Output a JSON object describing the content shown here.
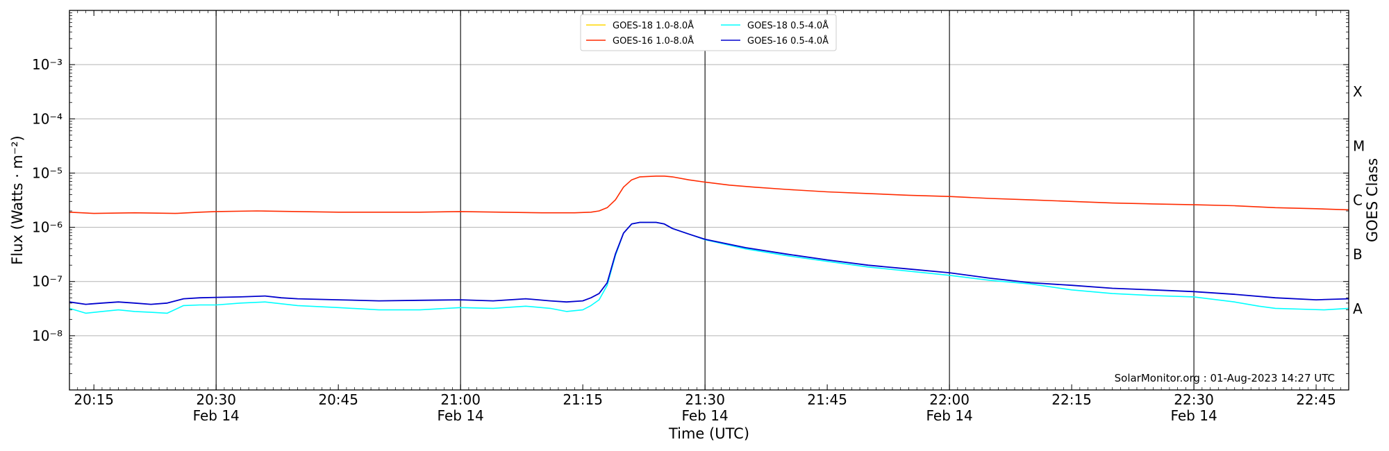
{
  "chart_data": {
    "type": "line",
    "title": "",
    "xlabel": "Time (UTC)",
    "ylabel": "Flux (Watts · m⁻²)",
    "y2label": "GOES Class",
    "y_scale": "log",
    "ylim": [
      1e-09,
      0.01
    ],
    "x_ticks": [
      {
        "time": "20:15",
        "date": ""
      },
      {
        "time": "20:30",
        "date": "Feb 14"
      },
      {
        "time": "20:45",
        "date": ""
      },
      {
        "time": "21:00",
        "date": "Feb 14"
      },
      {
        "time": "21:15",
        "date": ""
      },
      {
        "time": "21:30",
        "date": "Feb 14"
      },
      {
        "time": "21:45",
        "date": ""
      },
      {
        "time": "22:00",
        "date": "Feb 14"
      },
      {
        "time": "22:15",
        "date": ""
      },
      {
        "time": "22:30",
        "date": "Feb 14"
      },
      {
        "time": "22:45",
        "date": ""
      }
    ],
    "xlim": [
      "20:12",
      "22:49"
    ],
    "y_ticks": [
      "10⁻⁸",
      "10⁻⁷",
      "10⁻⁶",
      "10⁻⁵",
      "10⁻⁴",
      "10⁻³"
    ],
    "y_tick_values": [
      1e-08,
      1e-07,
      1e-06,
      1e-05,
      0.0001,
      0.001
    ],
    "goes_classes": [
      {
        "label": "A",
        "flux": 1e-08
      },
      {
        "label": "B",
        "flux": 1e-07
      },
      {
        "label": "C",
        "flux": 1e-06
      },
      {
        "label": "M",
        "flux": 1e-05
      },
      {
        "label": "X",
        "flux": 0.0001
      }
    ],
    "grid": true,
    "legend_position": "top-center",
    "watermark": "SolarMonitor.org : 01-Aug-2023 14:27 UTC",
    "series": [
      {
        "name": "GOES-18 1.0-8.0Å",
        "color": "#ffd700",
        "x": [],
        "y": []
      },
      {
        "name": "GOES-18 0.5-4.0Å",
        "color": "#00ffff",
        "x": [
          "20:12",
          "20:14",
          "20:16",
          "20:18",
          "20:20",
          "20:22",
          "20:24",
          "20:26",
          "20:28",
          "20:30",
          "20:33",
          "20:36",
          "20:40",
          "20:45",
          "20:50",
          "20:55",
          "21:00",
          "21:04",
          "21:08",
          "21:11",
          "21:13",
          "21:15",
          "21:16",
          "21:17",
          "21:18",
          "21:19",
          "21:20",
          "21:21",
          "21:22",
          "21:24",
          "21:25",
          "21:26",
          "21:28",
          "21:30",
          "21:35",
          "21:40",
          "21:45",
          "21:50",
          "21:55",
          "22:00",
          "22:05",
          "22:10",
          "22:15",
          "22:20",
          "22:25",
          "22:30",
          "22:35",
          "22:38",
          "22:40",
          "22:43",
          "22:46",
          "22:49"
        ],
        "y": [
          3.2e-08,
          2.6e-08,
          2.8e-08,
          3e-08,
          2.8e-08,
          2.7e-08,
          2.6e-08,
          3.6e-08,
          3.7e-08,
          3.7e-08,
          4e-08,
          4.2e-08,
          3.6e-08,
          3.3e-08,
          3e-08,
          3e-08,
          3.3e-08,
          3.2e-08,
          3.5e-08,
          3.2e-08,
          2.8e-08,
          3e-08,
          3.6e-08,
          4.6e-08,
          8.5e-08,
          3e-07,
          7.8e-07,
          1.15e-06,
          1.23e-06,
          1.23e-06,
          1.15e-06,
          9.5e-07,
          7.5e-07,
          5.9e-07,
          4e-07,
          3e-07,
          2.35e-07,
          1.85e-07,
          1.55e-07,
          1.3e-07,
          1.05e-07,
          9e-08,
          7e-08,
          6e-08,
          5.5e-08,
          5.2e-08,
          4.2e-08,
          3.5e-08,
          3.2e-08,
          3.1e-08,
          3e-08,
          3.2e-08
        ]
      },
      {
        "name": "GOES-16 1.0-8.0Å",
        "color": "#ff2a00",
        "x": [
          "20:12",
          "20:15",
          "20:20",
          "20:25",
          "20:28",
          "20:30",
          "20:35",
          "20:40",
          "20:45",
          "20:50",
          "20:55",
          "21:00",
          "21:05",
          "21:10",
          "21:14",
          "21:16",
          "21:17",
          "21:18",
          "21:19",
          "21:20",
          "21:21",
          "21:22",
          "21:24",
          "21:25",
          "21:26",
          "21:28",
          "21:30",
          "21:33",
          "21:36",
          "21:40",
          "21:45",
          "21:50",
          "21:55",
          "22:00",
          "22:05",
          "22:10",
          "22:15",
          "22:20",
          "22:25",
          "22:30",
          "22:35",
          "22:40",
          "22:45",
          "22:49"
        ],
        "y": [
          1.9e-06,
          1.8e-06,
          1.85e-06,
          1.8e-06,
          1.9e-06,
          1.95e-06,
          2e-06,
          1.95e-06,
          1.9e-06,
          1.9e-06,
          1.9e-06,
          1.95e-06,
          1.9e-06,
          1.85e-06,
          1.85e-06,
          1.9e-06,
          2e-06,
          2.3e-06,
          3.2e-06,
          5.5e-06,
          7.5e-06,
          8.5e-06,
          8.8e-06,
          8.8e-06,
          8.5e-06,
          7.5e-06,
          6.8e-06,
          6e-06,
          5.5e-06,
          5e-06,
          4.5e-06,
          4.2e-06,
          3.9e-06,
          3.7e-06,
          3.4e-06,
          3.2e-06,
          3e-06,
          2.8e-06,
          2.7e-06,
          2.6e-06,
          2.5e-06,
          2.3e-06,
          2.2e-06,
          2.1e-06
        ]
      },
      {
        "name": "GOES-16 0.5-4.0Å",
        "color": "#0000cd",
        "x": [
          "20:12",
          "20:14",
          "20:16",
          "20:18",
          "20:20",
          "20:22",
          "20:24",
          "20:26",
          "20:28",
          "20:30",
          "20:33",
          "20:36",
          "20:38",
          "20:40",
          "20:45",
          "20:50",
          "20:55",
          "21:00",
          "21:04",
          "21:08",
          "21:11",
          "21:13",
          "21:15",
          "21:16",
          "21:17",
          "21:18",
          "21:19",
          "21:20",
          "21:21",
          "21:22",
          "21:24",
          "21:25",
          "21:26",
          "21:28",
          "21:30",
          "21:35",
          "21:40",
          "21:45",
          "21:50",
          "21:55",
          "22:00",
          "22:05",
          "22:10",
          "22:15",
          "22:20",
          "22:25",
          "22:30",
          "22:35",
          "22:40",
          "22:45",
          "22:49"
        ],
        "y": [
          4.2e-08,
          3.8e-08,
          4e-08,
          4.2e-08,
          4e-08,
          3.8e-08,
          4e-08,
          4.8e-08,
          5e-08,
          5.1e-08,
          5.2e-08,
          5.4e-08,
          5e-08,
          4.8e-08,
          4.6e-08,
          4.4e-08,
          4.5e-08,
          4.6e-08,
          4.4e-08,
          4.8e-08,
          4.4e-08,
          4.2e-08,
          4.4e-08,
          5e-08,
          6e-08,
          9.5e-08,
          3.2e-07,
          7.8e-07,
          1.15e-06,
          1.23e-06,
          1.23e-06,
          1.15e-06,
          9.5e-07,
          7.5e-07,
          6e-07,
          4.2e-07,
          3.2e-07,
          2.5e-07,
          2e-07,
          1.7e-07,
          1.45e-07,
          1.15e-07,
          9.5e-08,
          8.5e-08,
          7.5e-08,
          7e-08,
          6.5e-08,
          5.8e-08,
          5e-08,
          4.6e-08,
          4.8e-08
        ]
      }
    ]
  }
}
